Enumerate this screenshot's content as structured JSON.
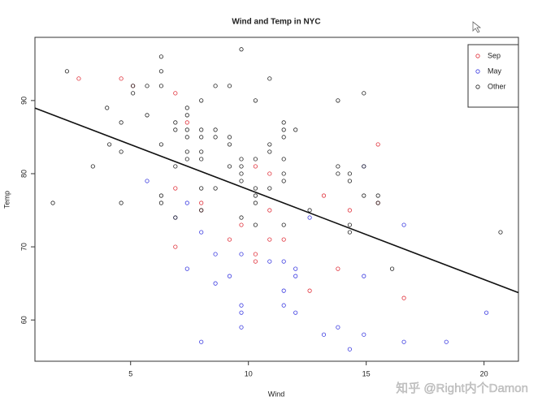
{
  "chart_data": {
    "type": "scatter",
    "title": "Wind and Temp in NYC",
    "x_label": "Wind",
    "y_label": "Temp",
    "xlim": [
      0.94,
      21.46
    ],
    "ylim": [
      54.36,
      98.64
    ],
    "xticks": [
      5,
      10,
      15,
      20
    ],
    "yticks": [
      60,
      70,
      80,
      90
    ],
    "grid": false,
    "legend_position": "topright",
    "regression": {
      "intercept": 90.13,
      "slope": -1.23,
      "color": "#111111"
    },
    "series": [
      {
        "name": "Sep",
        "color": "#e0303a",
        "x": [
          2.8,
          4.6,
          5.1,
          6.9,
          7.4,
          15.5,
          10.3,
          10.9,
          8.0,
          6.9,
          13.2,
          14.3,
          15.5,
          9.7,
          10.9,
          9.2,
          10.3,
          10.3,
          11.5,
          6.9,
          13.8,
          12.6,
          16.6,
          8.0,
          10.9
        ],
        "y": [
          93,
          93,
          92,
          91,
          87,
          84,
          81,
          80,
          76,
          78,
          77,
          75,
          76,
          73,
          75,
          71,
          69,
          68,
          71,
          70,
          67,
          64,
          63,
          75,
          71
        ]
      },
      {
        "name": "May",
        "color": "#3a3ae0",
        "x": [
          7.4,
          8.0,
          12.6,
          11.5,
          14.3,
          14.9,
          8.6,
          13.8,
          20.1,
          8.6,
          6.9,
          9.7,
          9.2,
          10.9,
          13.2,
          11.5,
          12.0,
          18.4,
          11.5,
          9.7,
          9.7,
          16.6,
          9.7,
          12.0,
          16.6,
          14.9,
          8.0,
          12.0,
          14.9,
          5.7,
          7.4
        ],
        "y": [
          67,
          72,
          74,
          62,
          56,
          66,
          65,
          59,
          61,
          69,
          74,
          69,
          66,
          68,
          58,
          64,
          66,
          57,
          68,
          62,
          59,
          73,
          61,
          61,
          57,
          58,
          57,
          67,
          81,
          79,
          76
        ]
      },
      {
        "name": "Other",
        "color": "#222222",
        "x": [
          1.7,
          2.3,
          3.4,
          4.0,
          4.1,
          4.6,
          4.6,
          4.6,
          5.1,
          5.1,
          5.7,
          5.7,
          6.3,
          6.3,
          6.3,
          6.3,
          6.3,
          6.3,
          6.9,
          6.9,
          6.9,
          6.9,
          7.4,
          7.4,
          7.4,
          7.4,
          7.4,
          7.4,
          8.0,
          8.0,
          8.0,
          8.0,
          8.0,
          8.0,
          8.0,
          8.6,
          8.6,
          8.6,
          8.6,
          9.2,
          9.2,
          9.2,
          9.2,
          9.7,
          9.7,
          9.7,
          9.7,
          9.7,
          9.7,
          10.3,
          10.3,
          10.3,
          10.3,
          10.3,
          10.3,
          10.9,
          10.9,
          10.9,
          10.9,
          11.5,
          11.5,
          11.5,
          11.5,
          11.5,
          11.5,
          11.5,
          12.0,
          12.6,
          13.8,
          13.8,
          13.8,
          14.3,
          14.3,
          14.3,
          14.3,
          14.9,
          14.9,
          14.9,
          15.5,
          15.5,
          16.1,
          20.7
        ],
        "y": [
          76,
          94,
          81,
          89,
          84,
          87,
          83,
          76,
          92,
          91,
          92,
          88,
          96,
          94,
          92,
          84,
          77,
          76,
          87,
          86,
          81,
          74,
          89,
          88,
          86,
          85,
          83,
          82,
          90,
          86,
          85,
          83,
          82,
          78,
          75,
          92,
          86,
          85,
          78,
          92,
          85,
          84,
          81,
          97,
          82,
          81,
          80,
          79,
          74,
          90,
          82,
          78,
          77,
          76,
          73,
          93,
          84,
          83,
          78,
          87,
          86,
          85,
          82,
          80,
          79,
          73,
          86,
          75,
          90,
          81,
          80,
          80,
          79,
          73,
          72,
          91,
          81,
          77,
          77,
          76,
          67,
          72
        ]
      }
    ],
    "watermark": "知乎 @Right内个Damon"
  }
}
